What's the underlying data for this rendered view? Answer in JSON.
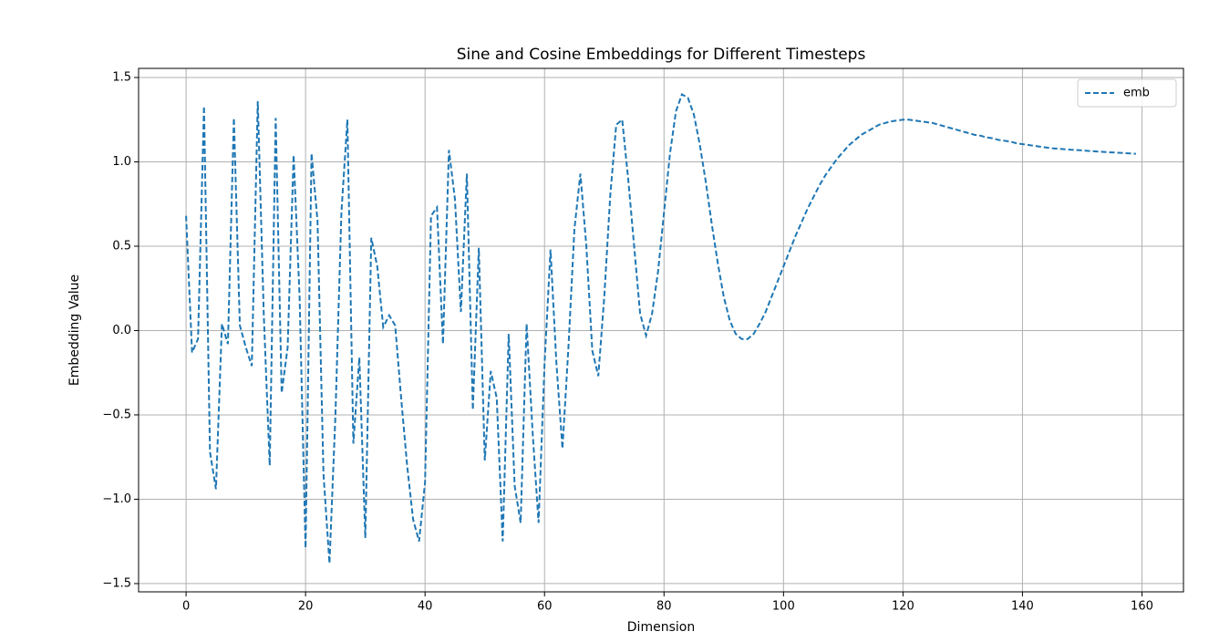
{
  "chart_data": {
    "type": "line",
    "title": "Sine and Cosine Embeddings for Different Timesteps",
    "x_label": "Dimension",
    "y_label": "Embedding Value",
    "x": [
      0,
      1,
      2,
      3,
      4,
      5,
      6,
      7,
      8,
      9,
      10,
      11,
      12,
      13,
      14,
      15,
      16,
      17,
      18,
      19,
      20,
      21,
      22,
      23,
      24,
      25,
      26,
      27,
      28,
      29,
      30,
      31,
      32,
      33,
      34,
      35,
      36,
      37,
      38,
      39,
      40,
      41,
      42,
      43,
      44,
      45,
      46,
      47,
      48,
      49,
      50,
      51,
      52,
      53,
      54,
      55,
      56,
      57,
      58,
      59,
      60,
      61,
      62,
      63,
      64,
      65,
      66,
      67,
      68,
      69,
      70,
      71,
      72,
      73,
      74,
      75,
      76,
      77,
      78,
      79,
      80,
      81,
      82,
      83,
      84,
      85,
      86,
      87,
      88,
      89,
      90,
      91,
      92,
      93,
      94,
      95,
      96,
      97,
      98,
      99,
      100,
      101,
      102,
      103,
      104,
      105,
      106,
      107,
      108,
      109,
      110,
      111,
      112,
      113,
      114,
      115,
      116,
      117,
      118,
      119,
      120,
      121,
      122,
      123,
      124,
      125,
      126,
      127,
      128,
      129,
      130,
      131,
      132,
      133,
      134,
      135,
      136,
      137,
      138,
      139,
      140,
      141,
      142,
      143,
      144,
      145,
      146,
      147,
      148,
      149,
      150,
      151,
      152,
      153,
      154,
      155,
      156,
      157,
      158,
      159
    ],
    "series": [
      {
        "name": "emb",
        "color": "#1f77b4",
        "dashed": true,
        "values": [
          0.68,
          -0.13,
          -0.05,
          1.33,
          -0.72,
          -0.94,
          0.04,
          -0.08,
          1.26,
          0.03,
          -0.1,
          -0.21,
          1.36,
          0.1,
          -0.8,
          1.26,
          -0.37,
          -0.1,
          1.04,
          0.2,
          -1.29,
          1.05,
          0.65,
          -0.85,
          -1.38,
          -0.5,
          0.7,
          1.25,
          -0.67,
          -0.16,
          -1.23,
          0.55,
          0.38,
          0.02,
          0.09,
          0.03,
          -0.4,
          -0.8,
          -1.12,
          -1.25,
          -0.9,
          0.68,
          0.73,
          -0.08,
          1.07,
          0.78,
          0.11,
          0.93,
          -0.47,
          0.49,
          -0.77,
          -0.24,
          -0.4,
          -1.25,
          -0.02,
          -0.92,
          -1.14,
          0.04,
          -0.6,
          -1.14,
          -0.2,
          0.48,
          -0.2,
          -0.7,
          -0.1,
          0.6,
          0.93,
          0.5,
          -0.12,
          -0.27,
          0.2,
          0.8,
          1.22,
          1.25,
          0.9,
          0.5,
          0.1,
          -0.03,
          0.1,
          0.35,
          0.7,
          1.05,
          1.3,
          1.4,
          1.38,
          1.28,
          1.1,
          0.88,
          0.63,
          0.4,
          0.2,
          0.06,
          -0.02,
          -0.05,
          -0.05,
          -0.02,
          0.04,
          0.11,
          0.2,
          0.29,
          0.38,
          0.47,
          0.56,
          0.64,
          0.72,
          0.79,
          0.86,
          0.92,
          0.97,
          1.02,
          1.06,
          1.1,
          1.13,
          1.16,
          1.18,
          1.2,
          1.22,
          1.23,
          1.24,
          1.245,
          1.25,
          1.25,
          1.245,
          1.24,
          1.235,
          1.23,
          1.22,
          1.21,
          1.2,
          1.19,
          1.18,
          1.17,
          1.16,
          1.155,
          1.145,
          1.14,
          1.13,
          1.125,
          1.12,
          1.11,
          1.105,
          1.1,
          1.095,
          1.09,
          1.085,
          1.08,
          1.078,
          1.075,
          1.072,
          1.07,
          1.068,
          1.065,
          1.063,
          1.06,
          1.058,
          1.056,
          1.054,
          1.052,
          1.05,
          1.048
        ]
      }
    ],
    "xlim": [
      -7.95,
      166.95
    ],
    "ylim": [
      -1.549,
      1.554
    ],
    "xticks": [
      0,
      20,
      40,
      60,
      80,
      100,
      120,
      140,
      160
    ],
    "yticks": [
      {
        "value": -1.5,
        "label": "−1.5"
      },
      {
        "value": -1.0,
        "label": "−1.0"
      },
      {
        "value": -0.5,
        "label": "−0.5"
      },
      {
        "value": 0.0,
        "label": "0.0"
      },
      0.5,
      {
        "value": 1.0,
        "label": "1.0"
      },
      1.5
    ],
    "grid": true,
    "legend": "upper right"
  }
}
